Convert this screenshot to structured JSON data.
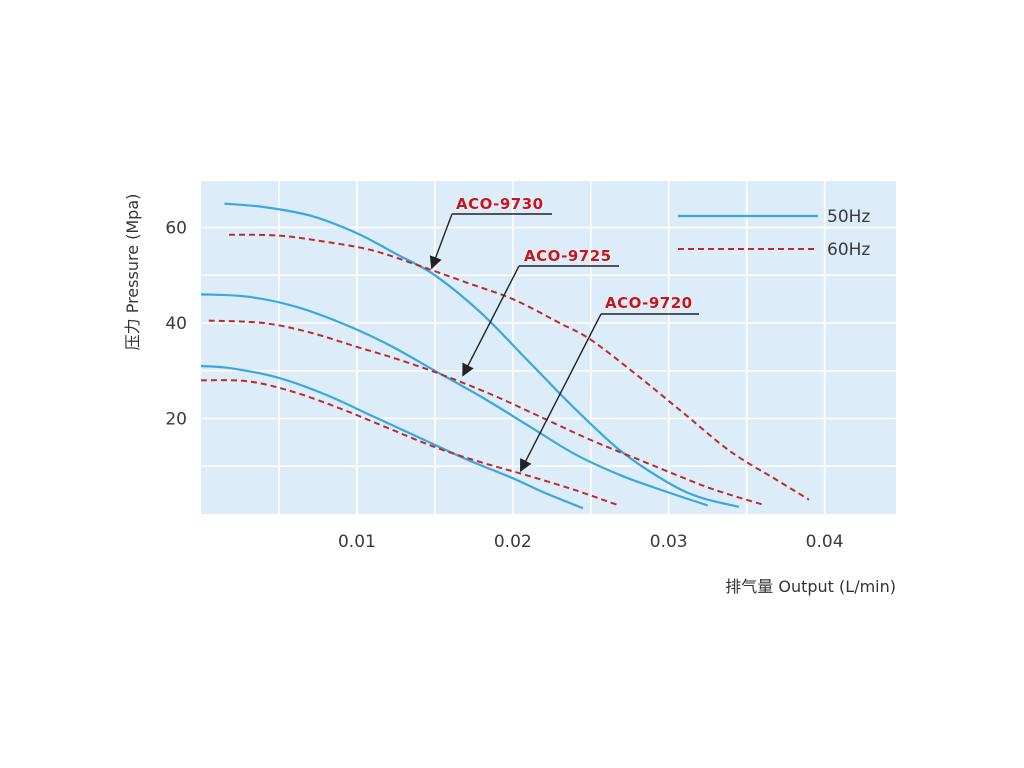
{
  "chart_data": {
    "type": "line",
    "xlabel": "排气量 Output (L/min)",
    "ylabel": "压力 Pressure (Mpa)",
    "xlim": [
      0,
      0.045
    ],
    "ylim": [
      0,
      70
    ],
    "x_ticks": [
      "0.01",
      "0.02",
      "0.03",
      "0.04"
    ],
    "x_tick_values": [
      0.01,
      0.02,
      0.03,
      0.04
    ],
    "y_ticks": [
      "20",
      "40",
      "60"
    ],
    "y_tick_values": [
      20,
      40,
      60
    ],
    "grid": true,
    "legend": {
      "placement": "top-right",
      "entries": [
        {
          "label": "50Hz",
          "style": "solid",
          "color": "#3aa7e0"
        },
        {
          "label": "60Hz",
          "style": "dashed",
          "color": "#c02a2a"
        }
      ]
    },
    "colors": {
      "plot_bg": "#dcedf9",
      "grid": "#ffffff",
      "hz50": "#3aa7e0",
      "hz60": "#c02a2a",
      "label": "#c4161c"
    },
    "series": [
      {
        "model": "ACO-9730",
        "frequency": "50Hz",
        "points": [
          [
            0.0015,
            65.0
          ],
          [
            0.004,
            64.3
          ],
          [
            0.007,
            62.5
          ],
          [
            0.01,
            58.8
          ],
          [
            0.0125,
            54.5
          ],
          [
            0.015,
            50.0
          ],
          [
            0.018,
            42.0
          ],
          [
            0.021,
            32.0
          ],
          [
            0.024,
            22.0
          ],
          [
            0.027,
            13.0
          ],
          [
            0.03,
            6.5
          ],
          [
            0.032,
            3.5
          ],
          [
            0.0345,
            1.5
          ]
        ]
      },
      {
        "model": "ACO-9730",
        "frequency": "60Hz",
        "points": [
          [
            0.0018,
            58.5
          ],
          [
            0.005,
            58.3
          ],
          [
            0.008,
            57.0
          ],
          [
            0.011,
            55.2
          ],
          [
            0.014,
            52.0
          ],
          [
            0.017,
            48.5
          ],
          [
            0.02,
            45.0
          ],
          [
            0.023,
            40.0
          ],
          [
            0.025,
            36.5
          ],
          [
            0.028,
            29.0
          ],
          [
            0.031,
            21.0
          ],
          [
            0.034,
            13.0
          ],
          [
            0.037,
            7.0
          ],
          [
            0.039,
            3.0
          ]
        ]
      },
      {
        "model": "ACO-9725",
        "frequency": "50Hz",
        "points": [
          [
            0.0,
            46.0
          ],
          [
            0.003,
            45.5
          ],
          [
            0.006,
            43.5
          ],
          [
            0.009,
            40.0
          ],
          [
            0.012,
            35.5
          ],
          [
            0.015,
            30.0
          ],
          [
            0.018,
            24.5
          ],
          [
            0.021,
            18.5
          ],
          [
            0.024,
            12.5
          ],
          [
            0.027,
            8.0
          ],
          [
            0.03,
            4.5
          ],
          [
            0.0325,
            1.8
          ]
        ]
      },
      {
        "model": "ACO-9725",
        "frequency": "60Hz",
        "points": [
          [
            0.0005,
            40.5
          ],
          [
            0.004,
            40.0
          ],
          [
            0.007,
            38.0
          ],
          [
            0.01,
            35.0
          ],
          [
            0.013,
            32.0
          ],
          [
            0.016,
            28.5
          ],
          [
            0.019,
            24.5
          ],
          [
            0.022,
            20.0
          ],
          [
            0.025,
            15.5
          ],
          [
            0.028,
            11.5
          ],
          [
            0.031,
            7.5
          ],
          [
            0.033,
            5.0
          ],
          [
            0.036,
            2.0
          ]
        ]
      },
      {
        "model": "ACO-9720",
        "frequency": "50Hz",
        "points": [
          [
            0.0,
            31.0
          ],
          [
            0.002,
            30.5
          ],
          [
            0.005,
            28.5
          ],
          [
            0.008,
            25.0
          ],
          [
            0.011,
            20.5
          ],
          [
            0.014,
            16.0
          ],
          [
            0.017,
            11.5
          ],
          [
            0.02,
            7.5
          ],
          [
            0.022,
            4.5
          ],
          [
            0.0245,
            1.2
          ]
        ]
      },
      {
        "model": "ACO-9720",
        "frequency": "60Hz",
        "points": [
          [
            0.0,
            28.0
          ],
          [
            0.003,
            27.8
          ],
          [
            0.006,
            25.5
          ],
          [
            0.009,
            22.0
          ],
          [
            0.012,
            18.0
          ],
          [
            0.015,
            14.0
          ],
          [
            0.018,
            10.8
          ],
          [
            0.021,
            8.0
          ],
          [
            0.024,
            5.0
          ],
          [
            0.0268,
            1.8
          ]
        ]
      }
    ],
    "annotations": [
      {
        "label": "ACO-9730",
        "points_to": [
          0.0148,
          51.5
        ]
      },
      {
        "label": "ACO-9725",
        "points_to": [
          0.0168,
          29.0
        ]
      },
      {
        "label": "ACO-9720",
        "points_to": [
          0.0205,
          9.0
        ]
      }
    ]
  }
}
